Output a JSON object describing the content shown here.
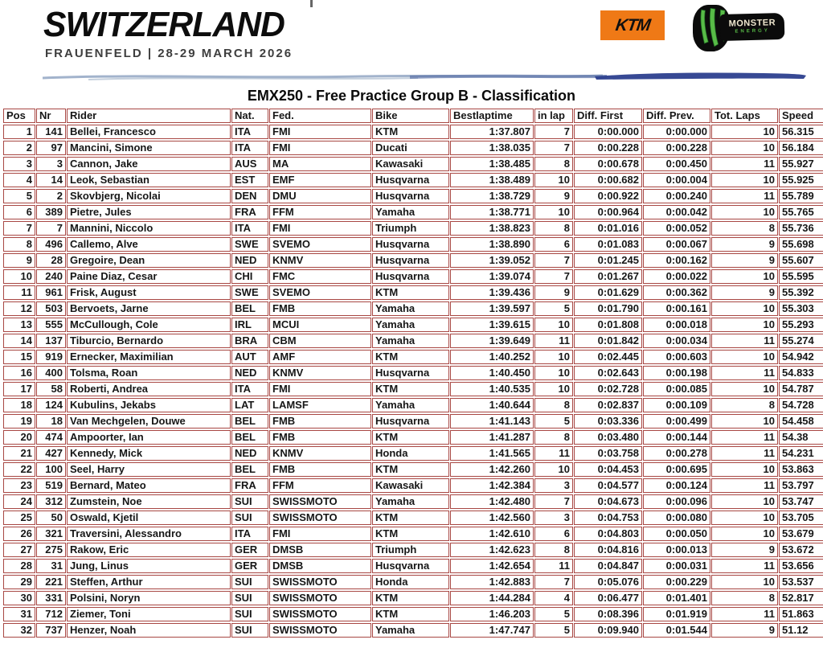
{
  "event": {
    "country": "SWITZERLAND",
    "location_line": "FRAUENFELD | 28-29 MARCH 2026"
  },
  "sponsors": {
    "ktm_label": "KTM",
    "monster_label": "MONSTER",
    "monster_sub": "ENERGY"
  },
  "colors": {
    "ktm_orange": "#ef7916",
    "monster_green": "#58bb47",
    "table_border_red": "#a84743",
    "brush_blue_light": "#8399bb",
    "brush_blue_dark": "#2c3f8e"
  },
  "title": "EMX250 - Free Practice Group B - Classification",
  "table": {
    "columns": [
      "Pos",
      "Nr",
      "Rider",
      "Nat.",
      "Fed.",
      "Bike",
      "Bestlaptime",
      "in lap",
      "Diff. First",
      "Diff. Prev.",
      "Tot. Laps",
      "Speed"
    ],
    "align": [
      "right",
      "right",
      "left",
      "left",
      "left",
      "left",
      "right",
      "right",
      "right",
      "right",
      "right",
      "left"
    ],
    "rows": [
      [
        "1",
        "141",
        "Bellei, Francesco",
        "ITA",
        "FMI",
        "KTM",
        "1:37.807",
        "7",
        "0:00.000",
        "0:00.000",
        "10",
        "56.315"
      ],
      [
        "2",
        "97",
        "Mancini, Simone",
        "ITA",
        "FMI",
        "Ducati",
        "1:38.035",
        "7",
        "0:00.228",
        "0:00.228",
        "10",
        "56.184"
      ],
      [
        "3",
        "3",
        "Cannon, Jake",
        "AUS",
        "MA",
        "Kawasaki",
        "1:38.485",
        "8",
        "0:00.678",
        "0:00.450",
        "11",
        "55.927"
      ],
      [
        "4",
        "14",
        "Leok, Sebastian",
        "EST",
        "EMF",
        "Husqvarna",
        "1:38.489",
        "10",
        "0:00.682",
        "0:00.004",
        "10",
        "55.925"
      ],
      [
        "5",
        "2",
        "Skovbjerg, Nicolai",
        "DEN",
        "DMU",
        "Husqvarna",
        "1:38.729",
        "9",
        "0:00.922",
        "0:00.240",
        "11",
        "55.789"
      ],
      [
        "6",
        "389",
        "Pietre, Jules",
        "FRA",
        "FFM",
        "Yamaha",
        "1:38.771",
        "10",
        "0:00.964",
        "0:00.042",
        "10",
        "55.765"
      ],
      [
        "7",
        "7",
        "Mannini, Niccolo",
        "ITA",
        "FMI",
        "Triumph",
        "1:38.823",
        "8",
        "0:01.016",
        "0:00.052",
        "8",
        "55.736"
      ],
      [
        "8",
        "496",
        "Callemo, Alve",
        "SWE",
        "SVEMO",
        "Husqvarna",
        "1:38.890",
        "6",
        "0:01.083",
        "0:00.067",
        "9",
        "55.698"
      ],
      [
        "9",
        "28",
        "Gregoire, Dean",
        "NED",
        "KNMV",
        "Husqvarna",
        "1:39.052",
        "7",
        "0:01.245",
        "0:00.162",
        "9",
        "55.607"
      ],
      [
        "10",
        "240",
        "Paine Diaz, Cesar",
        "CHI",
        "FMC",
        "Husqvarna",
        "1:39.074",
        "7",
        "0:01.267",
        "0:00.022",
        "10",
        "55.595"
      ],
      [
        "11",
        "961",
        "Frisk, August",
        "SWE",
        "SVEMO",
        "KTM",
        "1:39.436",
        "9",
        "0:01.629",
        "0:00.362",
        "9",
        "55.392"
      ],
      [
        "12",
        "503",
        "Bervoets, Jarne",
        "BEL",
        "FMB",
        "Yamaha",
        "1:39.597",
        "5",
        "0:01.790",
        "0:00.161",
        "10",
        "55.303"
      ],
      [
        "13",
        "555",
        "McCullough, Cole",
        "IRL",
        "MCUI",
        "Yamaha",
        "1:39.615",
        "10",
        "0:01.808",
        "0:00.018",
        "10",
        "55.293"
      ],
      [
        "14",
        "137",
        "Tiburcio, Bernardo",
        "BRA",
        "CBM",
        "Yamaha",
        "1:39.649",
        "11",
        "0:01.842",
        "0:00.034",
        "11",
        "55.274"
      ],
      [
        "15",
        "919",
        "Ernecker, Maximilian",
        "AUT",
        "AMF",
        "KTM",
        "1:40.252",
        "10",
        "0:02.445",
        "0:00.603",
        "10",
        "54.942"
      ],
      [
        "16",
        "400",
        "Tolsma, Roan",
        "NED",
        "KNMV",
        "Husqvarna",
        "1:40.450",
        "10",
        "0:02.643",
        "0:00.198",
        "11",
        "54.833"
      ],
      [
        "17",
        "58",
        "Roberti, Andrea",
        "ITA",
        "FMI",
        "KTM",
        "1:40.535",
        "10",
        "0:02.728",
        "0:00.085",
        "10",
        "54.787"
      ],
      [
        "18",
        "124",
        "Kubulins, Jekabs",
        "LAT",
        "LAMSF",
        "Yamaha",
        "1:40.644",
        "8",
        "0:02.837",
        "0:00.109",
        "8",
        "54.728"
      ],
      [
        "19",
        "18",
        "Van Mechgelen, Douwe",
        "BEL",
        "FMB",
        "Husqvarna",
        "1:41.143",
        "5",
        "0:03.336",
        "0:00.499",
        "10",
        "54.458"
      ],
      [
        "20",
        "474",
        "Ampoorter, Ian",
        "BEL",
        "FMB",
        "KTM",
        "1:41.287",
        "8",
        "0:03.480",
        "0:00.144",
        "11",
        "54.38"
      ],
      [
        "21",
        "427",
        "Kennedy, Mick",
        "NED",
        "KNMV",
        "Honda",
        "1:41.565",
        "11",
        "0:03.758",
        "0:00.278",
        "11",
        "54.231"
      ],
      [
        "22",
        "100",
        "Seel, Harry",
        "BEL",
        "FMB",
        "KTM",
        "1:42.260",
        "10",
        "0:04.453",
        "0:00.695",
        "10",
        "53.863"
      ],
      [
        "23",
        "519",
        "Bernard, Mateo",
        "FRA",
        "FFM",
        "Kawasaki",
        "1:42.384",
        "3",
        "0:04.577",
        "0:00.124",
        "11",
        "53.797"
      ],
      [
        "24",
        "312",
        "Zumstein, Noe",
        "SUI",
        "SWISSMOTO",
        "Yamaha",
        "1:42.480",
        "7",
        "0:04.673",
        "0:00.096",
        "10",
        "53.747"
      ],
      [
        "25",
        "50",
        "Oswald, Kjetil",
        "SUI",
        "SWISSMOTO",
        "KTM",
        "1:42.560",
        "3",
        "0:04.753",
        "0:00.080",
        "10",
        "53.705"
      ],
      [
        "26",
        "321",
        "Traversini, Alessandro",
        "ITA",
        "FMI",
        "KTM",
        "1:42.610",
        "6",
        "0:04.803",
        "0:00.050",
        "10",
        "53.679"
      ],
      [
        "27",
        "275",
        "Rakow, Eric",
        "GER",
        "DMSB",
        "Triumph",
        "1:42.623",
        "8",
        "0:04.816",
        "0:00.013",
        "9",
        "53.672"
      ],
      [
        "28",
        "31",
        "Jung, Linus",
        "GER",
        "DMSB",
        "Husqvarna",
        "1:42.654",
        "11",
        "0:04.847",
        "0:00.031",
        "11",
        "53.656"
      ],
      [
        "29",
        "221",
        "Steffen, Arthur",
        "SUI",
        "SWISSMOTO",
        "Honda",
        "1:42.883",
        "7",
        "0:05.076",
        "0:00.229",
        "10",
        "53.537"
      ],
      [
        "30",
        "331",
        "Polsini, Noryn",
        "SUI",
        "SWISSMOTO",
        "KTM",
        "1:44.284",
        "4",
        "0:06.477",
        "0:01.401",
        "8",
        "52.817"
      ],
      [
        "31",
        "712",
        "Ziemer, Toni",
        "SUI",
        "SWISSMOTO",
        "KTM",
        "1:46.203",
        "5",
        "0:08.396",
        "0:01.919",
        "11",
        "51.863"
      ],
      [
        "32",
        "737",
        "Henzer, Noah",
        "SUI",
        "SWISSMOTO",
        "Yamaha",
        "1:47.747",
        "5",
        "0:09.940",
        "0:01.544",
        "9",
        "51.12"
      ]
    ]
  }
}
